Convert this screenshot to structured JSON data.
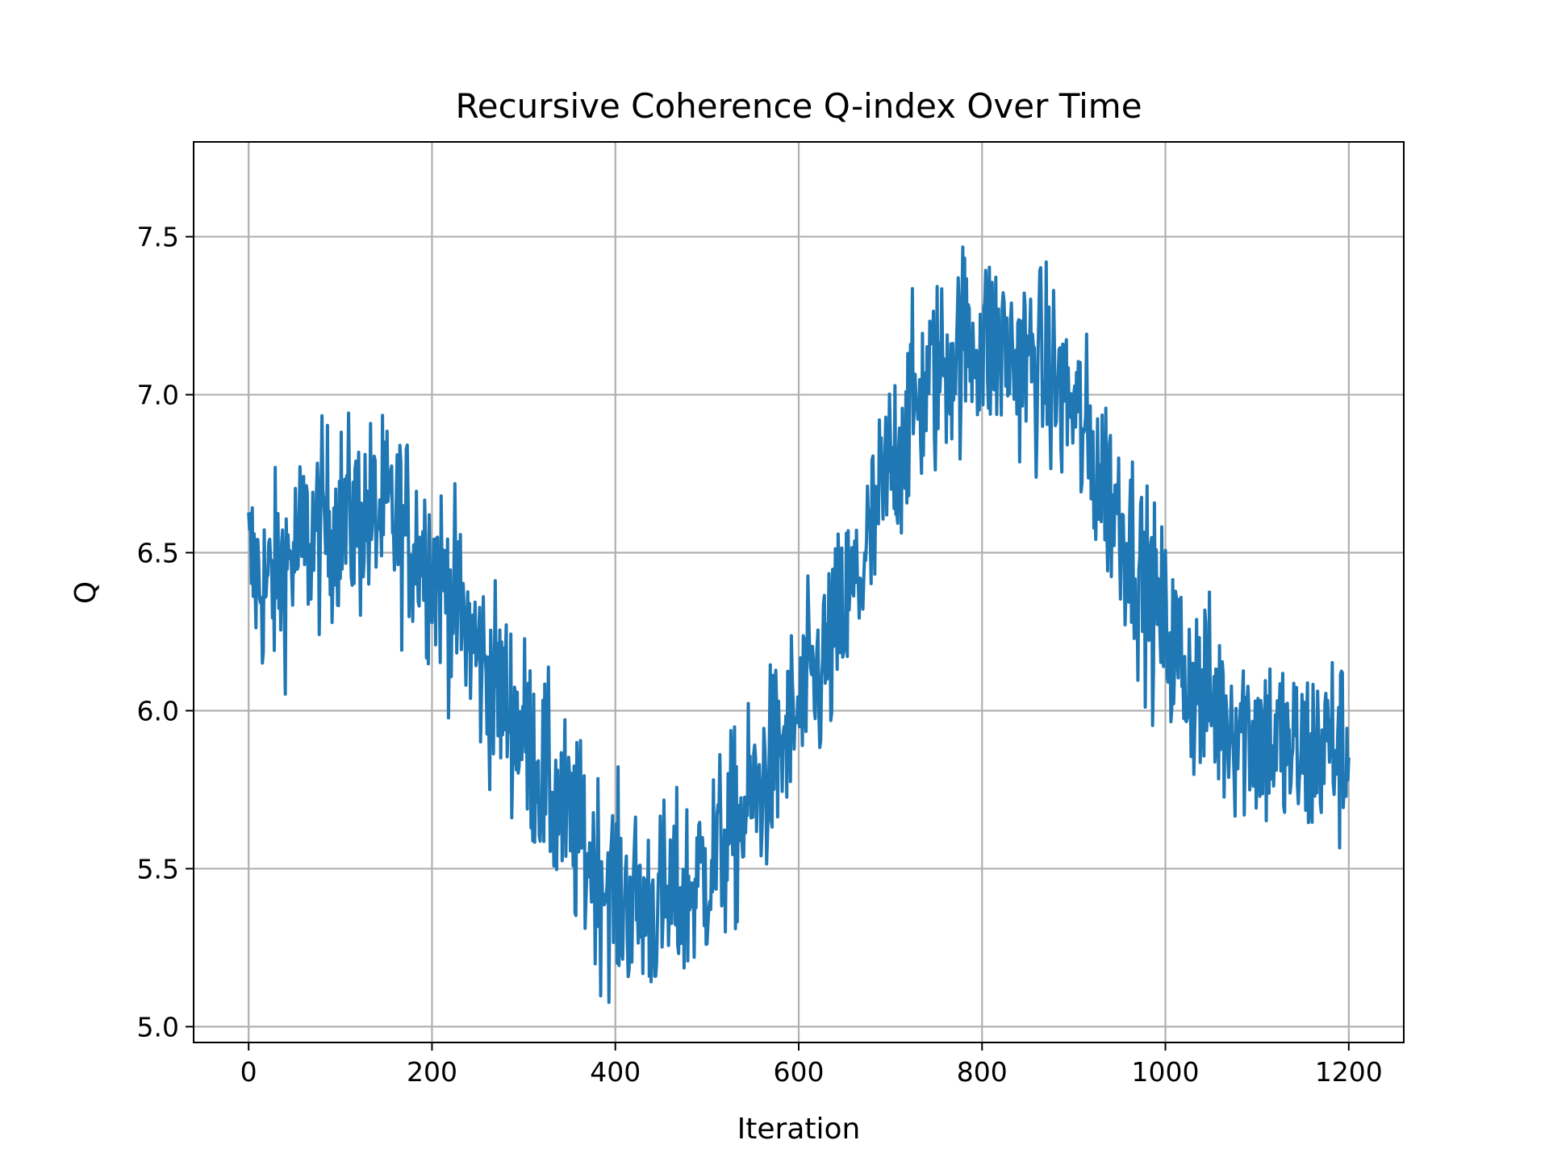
{
  "chart_data": {
    "type": "line",
    "title": "Recursive Coherence Q-index Over Time",
    "xlabel": "Iteration",
    "ylabel": "Q",
    "xlim": [
      -60,
      1260
    ],
    "ylim": [
      4.95,
      7.8
    ],
    "x_ticks": [
      0,
      200,
      400,
      600,
      800,
      1000,
      1200
    ],
    "x_tick_labels": [
      "0",
      "200",
      "400",
      "600",
      "800",
      "1000",
      "1200"
    ],
    "y_ticks": [
      5.0,
      5.5,
      6.0,
      6.5,
      7.0,
      7.5
    ],
    "y_tick_labels": [
      "5.0",
      "5.5",
      "6.0",
      "6.5",
      "7.0",
      "7.5"
    ],
    "grid": true,
    "legend": "none",
    "series": [
      {
        "color": "#1f77b4",
        "x": [
          0,
          20,
          40,
          60,
          80,
          100,
          120,
          140,
          160,
          180,
          200,
          220,
          240,
          260,
          280,
          300,
          320,
          340,
          360,
          380,
          400,
          420,
          440,
          460,
          480,
          500,
          520,
          540,
          560,
          580,
          600,
          620,
          640,
          660,
          680,
          700,
          720,
          740,
          760,
          780,
          800,
          820,
          840,
          860,
          880,
          900,
          920,
          940,
          960,
          980,
          1000,
          1020,
          1040,
          1060,
          1080,
          1100,
          1120,
          1140,
          1160,
          1180,
          1200
        ],
        "y": [
          6.47,
          6.38,
          6.46,
          6.53,
          6.58,
          6.61,
          6.6,
          6.62,
          6.6,
          6.55,
          6.47,
          6.37,
          6.24,
          6.12,
          6.03,
          5.93,
          5.8,
          5.68,
          5.59,
          5.5,
          5.43,
          5.39,
          5.38,
          5.39,
          5.43,
          5.5,
          5.58,
          5.66,
          5.77,
          5.88,
          5.99,
          6.1,
          6.23,
          6.38,
          6.55,
          6.77,
          6.93,
          7.02,
          7.1,
          7.17,
          7.17,
          7.15,
          7.11,
          7.1,
          7.03,
          6.96,
          6.8,
          6.69,
          6.55,
          6.38,
          6.25,
          6.13,
          6.05,
          6.0,
          5.97,
          5.93,
          5.9,
          5.86,
          5.86,
          5.9,
          5.85
        ],
        "noise": 0.28
      }
    ]
  }
}
